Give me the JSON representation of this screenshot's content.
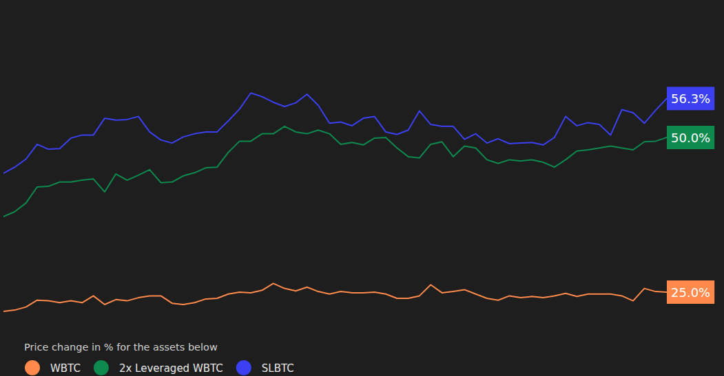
{
  "chart_data": {
    "type": "line",
    "legend_title": "Price change in % for the assets below",
    "legend": "bottom-left",
    "grid": false,
    "tick_labels": false,
    "data_labels": true,
    "x": [
      0,
      1,
      2,
      3,
      4,
      5,
      6,
      7,
      8,
      9,
      10,
      11,
      12,
      13,
      14,
      15,
      16,
      17,
      18,
      19,
      20,
      21,
      22,
      23,
      24,
      25,
      26,
      27,
      28,
      29,
      30,
      31,
      32,
      33,
      34,
      35,
      36,
      37,
      38,
      39,
      40,
      41,
      42,
      43,
      44,
      45,
      46,
      47,
      48,
      49,
      50,
      51,
      52,
      53,
      54,
      55,
      56,
      57,
      58,
      59
    ],
    "xlim": [
      0,
      59
    ],
    "ylim": [
      20,
      70
    ],
    "series": [
      {
        "name": "WBTC",
        "color": "#ff8a4c",
        "values": [
          21.9,
          22.1,
          22.6,
          23.7,
          23.6,
          23.3,
          23.6,
          23.3,
          24.4,
          23.0,
          23.8,
          23.6,
          24.1,
          24.4,
          24.4,
          23.2,
          23.0,
          23.3,
          23.9,
          24.0,
          24.7,
          25.0,
          24.9,
          25.3,
          26.4,
          25.6,
          25.2,
          25.8,
          25.1,
          24.7,
          25.1,
          24.9,
          24.9,
          25.0,
          24.7,
          24.0,
          24.0,
          24.4,
          26.2,
          24.9,
          25.1,
          25.4,
          24.7,
          24.0,
          23.7,
          24.4,
          24.1,
          24.3,
          24.1,
          24.4,
          24.8,
          24.3,
          24.7,
          24.7,
          24.7,
          24.4,
          23.6,
          25.6,
          25.1,
          25.0
        ],
        "value_labels": [
          null,
          null,
          null,
          null,
          null,
          null,
          null,
          null,
          null,
          null,
          null,
          null,
          null,
          null,
          null,
          null,
          null,
          null,
          null,
          null,
          null,
          null,
          null,
          null,
          null,
          null,
          null,
          null,
          null,
          null,
          null,
          null,
          null,
          null,
          null,
          null,
          null,
          null,
          null,
          null,
          null,
          null,
          null,
          null,
          null,
          null,
          null,
          null,
          null,
          null,
          null,
          null,
          null,
          null,
          null,
          null,
          null,
          null,
          null,
          "25.0%"
        ]
      },
      {
        "name": "2x Leveraged WBTC",
        "color": "#0e8a4f",
        "values": [
          37.2,
          38.0,
          39.4,
          42.0,
          42.1,
          42.8,
          42.8,
          43.1,
          43.3,
          41.2,
          44.1,
          43.1,
          43.9,
          44.8,
          42.7,
          42.8,
          43.8,
          44.3,
          45.1,
          45.2,
          47.6,
          49.4,
          49.4,
          50.6,
          50.6,
          51.8,
          50.9,
          50.6,
          51.2,
          50.6,
          48.9,
          49.2,
          48.8,
          49.9,
          50.0,
          48.3,
          46.9,
          46.7,
          48.9,
          49.3,
          46.9,
          48.6,
          48.3,
          46.4,
          45.8,
          46.4,
          46.2,
          46.4,
          46.0,
          45.2,
          46.4,
          47.8,
          48.0,
          48.3,
          48.6,
          48.3,
          48.0,
          49.3,
          49.4,
          50.0
        ],
        "value_labels": [
          null,
          null,
          null,
          null,
          null,
          null,
          null,
          null,
          null,
          null,
          null,
          null,
          null,
          null,
          null,
          null,
          null,
          null,
          null,
          null,
          null,
          null,
          null,
          null,
          null,
          null,
          null,
          null,
          null,
          null,
          null,
          null,
          null,
          null,
          null,
          null,
          null,
          null,
          null,
          null,
          null,
          null,
          null,
          null,
          null,
          null,
          null,
          null,
          null,
          null,
          null,
          null,
          null,
          null,
          null,
          null,
          null,
          null,
          null,
          "50.0%"
        ]
      },
      {
        "name": "SLBTC",
        "color": "#3b40f2",
        "values": [
          44.2,
          45.2,
          46.5,
          48.9,
          48.1,
          48.2,
          49.9,
          50.4,
          50.4,
          53.1,
          52.8,
          52.9,
          53.4,
          50.9,
          49.6,
          49.1,
          50.1,
          50.6,
          50.9,
          50.9,
          52.7,
          54.6,
          57.2,
          56.6,
          55.7,
          55.0,
          55.6,
          57.0,
          55.2,
          52.3,
          52.5,
          51.9,
          53.1,
          53.4,
          50.9,
          50.5,
          51.2,
          54.3,
          52.1,
          51.8,
          51.8,
          49.7,
          50.6,
          49.1,
          49.8,
          49.0,
          49.1,
          49.2,
          48.8,
          50.0,
          53.4,
          51.9,
          52.4,
          52.1,
          50.4,
          54.5,
          54.0,
          52.3,
          54.4,
          56.3
        ],
        "value_labels": [
          null,
          null,
          null,
          null,
          null,
          null,
          null,
          null,
          null,
          null,
          null,
          null,
          null,
          null,
          null,
          null,
          null,
          null,
          null,
          null,
          null,
          null,
          null,
          null,
          null,
          null,
          null,
          null,
          null,
          null,
          null,
          null,
          null,
          null,
          null,
          null,
          null,
          null,
          null,
          null,
          null,
          null,
          null,
          null,
          null,
          null,
          null,
          null,
          null,
          null,
          null,
          null,
          null,
          null,
          null,
          null,
          null,
          null,
          null,
          "56.3%"
        ]
      }
    ]
  }
}
